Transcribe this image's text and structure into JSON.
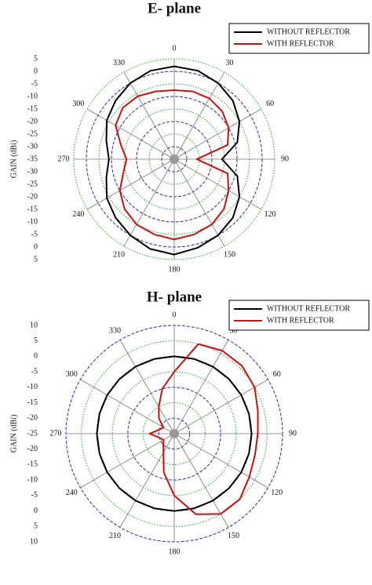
{
  "chart_data": [
    {
      "type": "polar",
      "title": "E- plane",
      "radial_axis_label": "GAIN (dBi)",
      "theta": [
        0,
        15,
        30,
        45,
        60,
        75,
        90,
        105,
        120,
        135,
        150,
        165,
        180,
        195,
        210,
        225,
        240,
        255,
        270,
        285,
        300,
        315,
        330,
        345
      ],
      "thetaticks": [
        0,
        30,
        60,
        90,
        120,
        150,
        180,
        210,
        240,
        270,
        300,
        330
      ],
      "rlim": [
        -35,
        5
      ],
      "rticks": [
        -35,
        -30,
        -25,
        -20,
        -15,
        -10,
        -5,
        0,
        5
      ],
      "grid": true,
      "legend": "upper right",
      "series": [
        {
          "name": "WITHOUT REFLECTOR",
          "color": "#000000",
          "values": [
            2,
            1.5,
            0,
            -2,
            -5,
            -9,
            -16,
            -9,
            -5,
            -2,
            0,
            1.5,
            3,
            2,
            0,
            -2,
            -4,
            -7,
            -9,
            -7,
            -4,
            -2,
            0,
            1.5
          ]
        },
        {
          "name": "WITH REFLECTOR",
          "color": "#cc1111",
          "values": [
            -7.5,
            -7,
            -7,
            -8,
            -10,
            -13,
            -26,
            -13,
            -10,
            -7,
            -5,
            -4,
            -3,
            -4,
            -5,
            -7,
            -10,
            -14,
            -16,
            -13,
            -8,
            -6,
            -6,
            -7
          ]
        }
      ]
    },
    {
      "type": "polar",
      "title": "H- plane",
      "radial_axis_label": "GAIN (dBi)",
      "theta": [
        0,
        15,
        30,
        45,
        60,
        75,
        90,
        105,
        120,
        135,
        150,
        165,
        180,
        195,
        210,
        225,
        240,
        255,
        270,
        285,
        300,
        315,
        330,
        345
      ],
      "thetaticks": [
        0,
        30,
        60,
        90,
        120,
        150,
        180,
        210,
        240,
        270,
        300,
        330
      ],
      "rlim": [
        -25,
        10
      ],
      "rticks": [
        -25,
        -20,
        -15,
        -10,
        -5,
        0,
        5,
        10
      ],
      "grid": true,
      "legend": "upper right",
      "series": [
        {
          "name": "WITHOUT REFLECTOR",
          "color": "#000000",
          "values": [
            0,
            0,
            0,
            0,
            0,
            0,
            0,
            0,
            0,
            0,
            0,
            0,
            0,
            0,
            0,
            0,
            0,
            0,
            0,
            0,
            0,
            0,
            0,
            0
          ]
        },
        {
          "name": "WITH REFLECTOR",
          "color": "#cc1111",
          "values": [
            -5,
            5,
            6,
            6,
            5,
            3,
            2,
            2,
            3,
            5,
            5,
            2,
            -5,
            -12,
            -18,
            -20,
            -21,
            -20,
            -17,
            -20,
            -21,
            -18,
            -15,
            -10
          ]
        }
      ]
    }
  ]
}
